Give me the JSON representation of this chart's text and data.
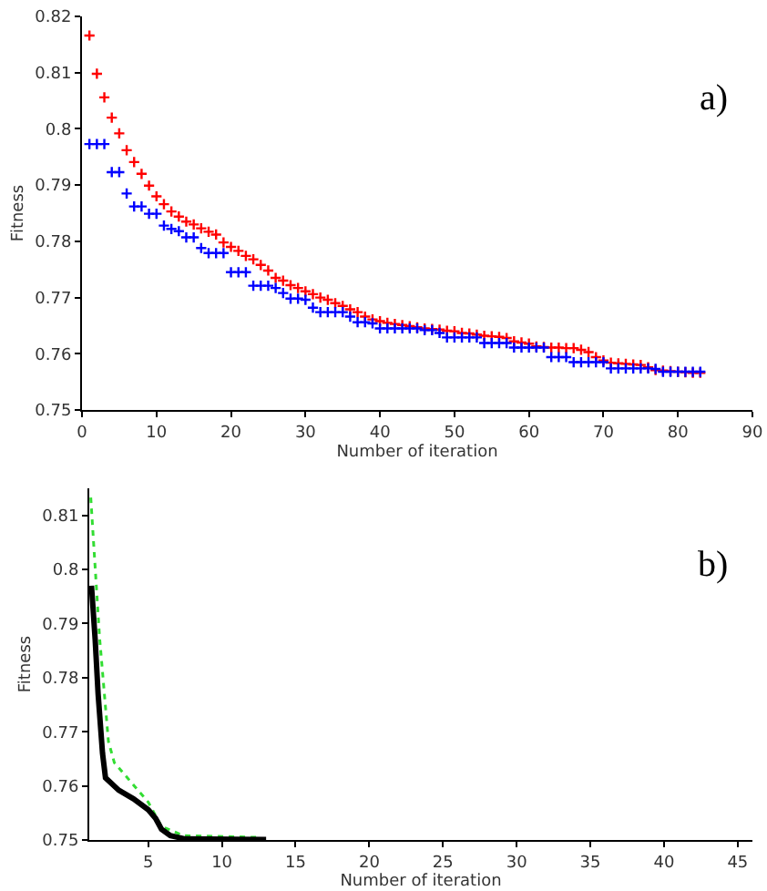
{
  "chart_data": [
    {
      "type": "scatter",
      "xlabel": "Number of iteration",
      "ylabel": "Fitness",
      "annotations": [
        "a)"
      ],
      "marker": "cross",
      "xlim": [
        0,
        90
      ],
      "xticks": [
        0,
        10,
        20,
        30,
        40,
        50,
        60,
        70,
        80,
        90
      ],
      "ylim": [
        0.75,
        0.82
      ],
      "yticks": [
        0.75,
        0.76,
        0.77,
        0.78,
        0.79,
        0.8,
        0.81,
        0.82
      ],
      "x": [
        1,
        2,
        3,
        4,
        5,
        6,
        7,
        8,
        9,
        10,
        11,
        12,
        13,
        14,
        15,
        16,
        17,
        18,
        19,
        20,
        21,
        22,
        23,
        24,
        25,
        26,
        27,
        28,
        29,
        30,
        31,
        32,
        33,
        34,
        35,
        36,
        37,
        38,
        39,
        40,
        41,
        42,
        43,
        44,
        45,
        46,
        47,
        48,
        49,
        50,
        51,
        52,
        53,
        54,
        55,
        56,
        57,
        58,
        59,
        60,
        61,
        62,
        63,
        64,
        65,
        66,
        67,
        68,
        69,
        70,
        71,
        72,
        73,
        74,
        75,
        76,
        77,
        78,
        79,
        80,
        81,
        82,
        83
      ],
      "series": [
        {
          "color": "#ff0000",
          "values": [
            0.8166,
            0.8098,
            0.8056,
            0.802,
            0.7992,
            0.7962,
            0.7941,
            0.792,
            0.7899,
            0.788,
            0.7866,
            0.7853,
            0.7844,
            0.7835,
            0.783,
            0.7823,
            0.7817,
            0.7812,
            0.7798,
            0.779,
            0.7783,
            0.7774,
            0.7768,
            0.7758,
            0.7748,
            0.7735,
            0.773,
            0.7722,
            0.7717,
            0.7711,
            0.7706,
            0.77,
            0.7696,
            0.769,
            0.7685,
            0.7679,
            0.7674,
            0.7666,
            0.7661,
            0.7658,
            0.7655,
            0.7653,
            0.7651,
            0.7649,
            0.7647,
            0.7645,
            0.7644,
            0.7643,
            0.7641,
            0.764,
            0.7637,
            0.7636,
            0.7634,
            0.7632,
            0.7631,
            0.763,
            0.7628,
            0.7622,
            0.762,
            0.7618,
            0.7613,
            0.7612,
            0.7611,
            0.7611,
            0.761,
            0.761,
            0.7607,
            0.7603,
            0.7594,
            0.7588,
            0.7584,
            0.7583,
            0.7582,
            0.7581,
            0.758,
            0.7576,
            0.7571,
            0.757,
            0.7569,
            0.7568,
            0.7567,
            0.7566,
            0.7566
          ]
        },
        {
          "color": "#0000ff",
          "values": [
            0.7973,
            0.7973,
            0.7973,
            0.7923,
            0.7923,
            0.7885,
            0.7862,
            0.7862,
            0.7849,
            0.7849,
            0.7828,
            0.7822,
            0.7818,
            0.7807,
            0.7807,
            0.7788,
            0.7779,
            0.7779,
            0.7779,
            0.7745,
            0.7745,
            0.7745,
            0.7721,
            0.7721,
            0.7721,
            0.7717,
            0.7708,
            0.7698,
            0.7698,
            0.7696,
            0.7682,
            0.7674,
            0.7674,
            0.7674,
            0.7674,
            0.7666,
            0.7656,
            0.7656,
            0.7654,
            0.7645,
            0.7645,
            0.7645,
            0.7645,
            0.7645,
            0.7645,
            0.7642,
            0.7642,
            0.7637,
            0.7629,
            0.7629,
            0.7629,
            0.7629,
            0.7629,
            0.7619,
            0.7619,
            0.7619,
            0.7619,
            0.7611,
            0.7611,
            0.7611,
            0.7611,
            0.7611,
            0.7594,
            0.7594,
            0.7594,
            0.7585,
            0.7585,
            0.7585,
            0.7585,
            0.7585,
            0.7574,
            0.7574,
            0.7574,
            0.7574,
            0.7574,
            0.7574,
            0.7573,
            0.7568,
            0.7568,
            0.7568,
            0.7568,
            0.7568,
            0.7568
          ]
        }
      ]
    },
    {
      "type": "line",
      "xlabel": "Number of iteration",
      "ylabel": "Fitness",
      "annotations": [
        "b)"
      ],
      "xlim": [
        1,
        46
      ],
      "xticks": [
        5,
        10,
        15,
        20,
        25,
        30,
        35,
        40,
        45
      ],
      "ylim": [
        0.75,
        0.815
      ],
      "yticks": [
        0.75,
        0.76,
        0.77,
        0.78,
        0.79,
        0.8,
        0.81
      ],
      "series": [
        {
          "color": "#33dd33",
          "line_style": "dotted",
          "x": [
            1.1,
            1.7,
            2.3,
            2.7,
            5,
            5.9,
            7.4,
            12.4
          ],
          "values": [
            0.8133,
            0.7874,
            0.7682,
            0.7643,
            0.757,
            0.7525,
            0.7508,
            0.7505
          ]
        },
        {
          "color": "#000000",
          "line_style": "solid",
          "x": [
            1.15,
            1.4,
            1.6,
            1.9,
            2.1,
            3,
            4,
            5,
            5.5,
            5.9,
            6.5,
            7.5,
            13
          ],
          "values": [
            0.797,
            0.787,
            0.777,
            0.766,
            0.7615,
            0.7592,
            0.7576,
            0.7556,
            0.754,
            0.752,
            0.7508,
            0.7502,
            0.7501
          ]
        }
      ]
    }
  ]
}
